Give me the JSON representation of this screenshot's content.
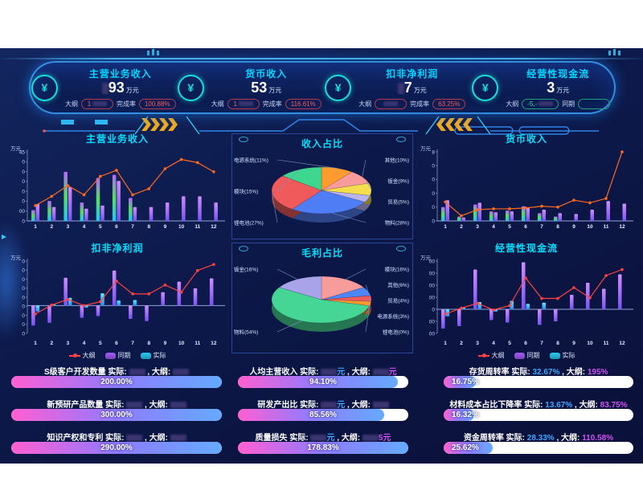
{
  "labels": {
    "actual": "实际",
    "target": "大纲",
    "period": "同期",
    "completion": "完成率",
    "yoy": "同期",
    "unit_wan": "万元"
  },
  "colors": {
    "accent_cyan": "#00d8ff",
    "title_cyan": "#00e0ff",
    "line_orange": "#ff6a1e",
    "line_red": "#ff4242",
    "bar_purple_top": "#cf8bff",
    "bar_purple_bottom": "#7a52f5",
    "bar_rainbow": [
      "#b964ff",
      "#52e05a",
      "#1fc8f8"
    ],
    "bar_cyan_top": "#62e8ff",
    "bar_cyan_bottom": "#1f8ef5",
    "progress_gradient": [
      "#ff5fd2",
      "#8f7bff",
      "#65aaff"
    ],
    "actual_value": "#3fa7ff",
    "target_value": "#cf52f5",
    "badge_red": "#ff5a5a",
    "badge_green": "#35e0a1"
  },
  "header": {
    "kpis": [
      {
        "title": "主营业务收入",
        "value": "93",
        "value_redacted_prefix": true,
        "unit": "万元",
        "badges": [
          {
            "label": "大纲",
            "value": "1",
            "redacted": true,
            "color": "red"
          },
          {
            "label": "完成率",
            "value": "100.88%",
            "redacted": false,
            "color": "red"
          }
        ]
      },
      {
        "title": "货币收入",
        "value": "53",
        "value_redacted_prefix": false,
        "unit": "万元",
        "badges": [
          {
            "label": "大纲",
            "value": "1",
            "redacted": true,
            "color": "red"
          },
          {
            "label": "完成率",
            "value": "116.61%",
            "redacted": false,
            "color": "red"
          }
        ]
      },
      {
        "title": "扣非净利润",
        "value": "7",
        "value_redacted_prefix": true,
        "unit": "万元",
        "badges": [
          {
            "label": "大纲",
            "value": "",
            "redacted": true,
            "color": "red"
          },
          {
            "label": "完成率",
            "value": "63.25%",
            "redacted": false,
            "color": "red"
          }
        ]
      },
      {
        "title": "经营性现金流",
        "value": "3",
        "value_redacted_prefix": false,
        "unit": "万元",
        "badges": [
          {
            "label": "大纲",
            "value": "-5,-",
            "redacted": true,
            "color": "green"
          },
          {
            "label": "同期",
            "value": "",
            "redacted": false,
            "color": "green"
          }
        ]
      }
    ]
  },
  "legend": {
    "items": [
      {
        "name": "大纲",
        "type": "line",
        "color": "#ff4242"
      },
      {
        "name": "同期",
        "type": "rect",
        "color": "#a45bf7"
      },
      {
        "name": "实际",
        "type": "rect",
        "color": "#29c8f0"
      }
    ]
  },
  "chart_data": [
    {
      "type": "bar+line",
      "title": "主营业务收入",
      "unit": "万元",
      "ylim": [
        0,
        45
      ],
      "y_tick_labels": [
        "45",
        "0",
        "0",
        "0",
        "0",
        "0",
        "00",
        "0"
      ],
      "x": [
        "1",
        "2",
        "3",
        "4",
        "5",
        "6",
        "7",
        "8",
        "9",
        "10",
        "11",
        "12"
      ],
      "legend": false,
      "line_color": "#ff6a1e",
      "series": [
        {
          "name": "实际",
          "kind": "bar",
          "style": "rainbow",
          "values": [
            7,
            13,
            32,
            12,
            28,
            30,
            15,
            0,
            0,
            0,
            0,
            0
          ]
        },
        {
          "name": "同期",
          "kind": "bar",
          "style": "purple",
          "values": [
            11,
            9,
            22,
            8,
            10,
            26,
            9,
            9,
            12,
            16,
            16,
            12
          ]
        },
        {
          "name": "大纲",
          "kind": "line",
          "values": [
            10,
            16,
            23,
            17,
            29,
            33,
            17,
            21,
            34,
            40,
            38,
            32
          ]
        }
      ]
    },
    {
      "type": "pie",
      "title": "收入占比",
      "slices": [
        {
          "label": "电源系统",
          "pct": "11%",
          "value": 11,
          "color": "#ff9b2f",
          "side": "left"
        },
        {
          "label": "其他",
          "pct": "10%",
          "value": 10,
          "color": "#f89b9b",
          "side": "right"
        },
        {
          "label": "钣金",
          "pct": "9%",
          "value": 9,
          "color": "#f5de4e",
          "side": "right"
        },
        {
          "label": "贸易",
          "pct": "5%",
          "value": 5,
          "color": "#b9b3f2",
          "side": "right"
        },
        {
          "label": "物料",
          "pct": "28%",
          "value": 28,
          "color": "#4f7df5",
          "side": "right"
        },
        {
          "label": "锂电池",
          "pct": "27%",
          "value": 27,
          "color": "#f05a5a",
          "side": "left"
        },
        {
          "label": "模块",
          "pct": "15%",
          "value": 15,
          "color": "#3fd68f",
          "side": "left"
        }
      ]
    },
    {
      "type": "bar+line",
      "title": "货币收入",
      "unit": "万元",
      "ylim": [
        0,
        8
      ],
      "y_tick_labels": [
        "8",
        "0",
        "0",
        "0",
        "0",
        "0"
      ],
      "x": [
        "1",
        "2",
        "3",
        "4",
        "5",
        "6",
        "7",
        "8",
        "9",
        "10",
        "11",
        "12"
      ],
      "legend": false,
      "line_color": "#ff6a1e",
      "series": [
        {
          "name": "实际",
          "kind": "bar",
          "style": "rainbow",
          "values": [
            1.6,
            0.5,
            1.9,
            1.1,
            1.2,
            1.7,
            0.9,
            0.5,
            0,
            0,
            0,
            0
          ]
        },
        {
          "name": "同期",
          "kind": "bar",
          "style": "purple",
          "values": [
            2.4,
            0.4,
            2.1,
            1.0,
            1.1,
            1.5,
            1.3,
            0.9,
            0.8,
            1.3,
            2.3,
            2.0
          ]
        },
        {
          "name": "大纲",
          "kind": "line",
          "values": [
            2.2,
            0.6,
            1.3,
            1.4,
            1.4,
            1.5,
            1.7,
            1.6,
            2.4,
            2.1,
            2.6,
            8
          ]
        }
      ]
    },
    {
      "type": "bar+line",
      "title": "扣非净利润",
      "unit": "万元",
      "ylim": [
        -5,
        8
      ],
      "y_tick_labels": [
        "0",
        "0",
        "0",
        "0",
        "0",
        "0",
        "0",
        "0",
        "0"
      ],
      "x": [
        "1",
        "2",
        "3",
        "4",
        "5",
        "6",
        "7",
        "8",
        "9",
        "10",
        "11",
        "12"
      ],
      "legend": true,
      "line_color": "#ff4242",
      "series": [
        {
          "name": "同期",
          "kind": "bar",
          "style": "purple",
          "values": [
            -3.6,
            -3.1,
            5,
            -2.2,
            -1.9,
            6.3,
            -2.4,
            -2.8,
            2.4,
            4.3,
            3.1,
            4.9
          ]
        },
        {
          "name": "实际",
          "kind": "bar",
          "style": "cyan",
          "values": [
            -1.1,
            0.2,
            1.4,
            -0.4,
            2.2,
            0.9,
            1.0,
            0,
            0,
            0,
            0,
            0
          ]
        },
        {
          "name": "大纲",
          "kind": "line",
          "values": [
            -1.5,
            0.1,
            1.1,
            0,
            0.7,
            4.4,
            2.1,
            2.1,
            3.7,
            2.4,
            6.3,
            7.4
          ]
        }
      ]
    },
    {
      "type": "pie",
      "title": "毛利占比",
      "slices": [
        {
          "label": "模块",
          "pct": "16%",
          "value": 16,
          "color": "#f89b9b",
          "side": "right"
        },
        {
          "label": "其他",
          "pct": "6%",
          "value": 6,
          "color": "#4f86f5",
          "side": "right"
        },
        {
          "label": "贸易",
          "pct": "4%",
          "value": 4,
          "color": "#f05a5a",
          "side": "right"
        },
        {
          "label": "电源系统",
          "pct": "3%",
          "value": 3,
          "color": "#ff9b2f",
          "side": "right"
        },
        {
          "label": "锂电池",
          "pct": "0%",
          "value": 0,
          "color": "#e86a6a",
          "side": "right"
        },
        {
          "label": "物料",
          "pct": "54%",
          "value": 54,
          "color": "#45d695",
          "side": "left"
        },
        {
          "label": "钣金",
          "pct": "16%",
          "value": 16,
          "color": "#a9a3ea",
          "side": "left"
        }
      ]
    },
    {
      "type": "bar+line",
      "title": "经营性现金流",
      "unit": "万元",
      "ylim": [
        -200,
        400
      ],
      "y_tick_labels": [
        "00",
        "00",
        "00",
        "00",
        "0",
        "00",
        "00"
      ],
      "x": [
        "1",
        "2",
        "3",
        "4",
        "5",
        "6",
        "7",
        "8",
        "9",
        "10",
        "11",
        "12"
      ],
      "legend": true,
      "line_color": "#ff4242",
      "series": [
        {
          "name": "同期",
          "kind": "bar",
          "style": "purple",
          "values": [
            -160,
            -140,
            330,
            -90,
            -110,
            390,
            -130,
            -100,
            120,
            220,
            170,
            290
          ]
        },
        {
          "name": "实际",
          "kind": "bar",
          "style": "cyan",
          "values": [
            -60,
            15,
            60,
            -20,
            70,
            45,
            55,
            0,
            0,
            0,
            0,
            0
          ]
        },
        {
          "name": "大纲",
          "kind": "line",
          "values": [
            -40,
            10,
            50,
            -5,
            30,
            260,
            90,
            90,
            180,
            95,
            280,
            330
          ]
        }
      ]
    }
  ],
  "kpi_bars": {
    "columns": [
      {
        "rows": [
          {
            "name": "S级客户开发数量",
            "actual": {
              "value": "",
              "suffix": "",
              "redacted": true
            },
            "target": {
              "value": "",
              "suffix": "",
              "redacted": true
            },
            "percent": "200.00%",
            "fill": 100
          },
          {
            "name": "新预研产品数量",
            "actual": {
              "value": "",
              "suffix": "",
              "redacted": true
            },
            "target": {
              "value": "",
              "suffix": "",
              "redacted": true
            },
            "percent": "300.00%",
            "fill": 100
          },
          {
            "name": "知识产权和专利",
            "actual": {
              "value": "",
              "suffix": "",
              "redacted": true
            },
            "target": {
              "value": "",
              "suffix": "",
              "redacted": true
            },
            "percent": "290.00%",
            "fill": 100
          }
        ]
      },
      {
        "rows": [
          {
            "name": "人均主营收入",
            "actual": {
              "value": "",
              "suffix": "元",
              "redacted": true
            },
            "target": {
              "value": "",
              "suffix": "元",
              "redacted": true
            },
            "percent": "94.10%",
            "fill": 94
          },
          {
            "name": "研发产出比",
            "actual": {
              "value": "",
              "suffix": "元",
              "redacted": true
            },
            "target": {
              "value": "",
              "suffix": "",
              "redacted": true
            },
            "percent": "85.56%",
            "fill": 86
          },
          {
            "name": "质量损失",
            "actual": {
              "value": "",
              "suffix": "元",
              "redacted": true
            },
            "target": {
              "value": "5",
              "suffix": "元",
              "redacted": true
            },
            "percent": "178.83%",
            "fill": 100
          }
        ]
      },
      {
        "rows": [
          {
            "name": "存货周转率",
            "actual": {
              "value": "32.67%",
              "suffix": "",
              "redacted": false
            },
            "target": {
              "value": "195%",
              "suffix": "",
              "redacted": false
            },
            "percent": "16.75%",
            "fill": 17
          },
          {
            "name": "材料成本占比下降率",
            "actual": {
              "value": "13.67%",
              "suffix": "",
              "redacted": false
            },
            "target": {
              "value": "83.75%",
              "suffix": "",
              "redacted": false
            },
            "percent": "16.32%",
            "fill": 16
          },
          {
            "name": "资金周转率",
            "actual": {
              "value": "28.33%",
              "suffix": "",
              "redacted": false
            },
            "target": {
              "value": "110.58%",
              "suffix": "",
              "redacted": false
            },
            "percent": "25.62%",
            "fill": 26
          }
        ]
      }
    ]
  }
}
